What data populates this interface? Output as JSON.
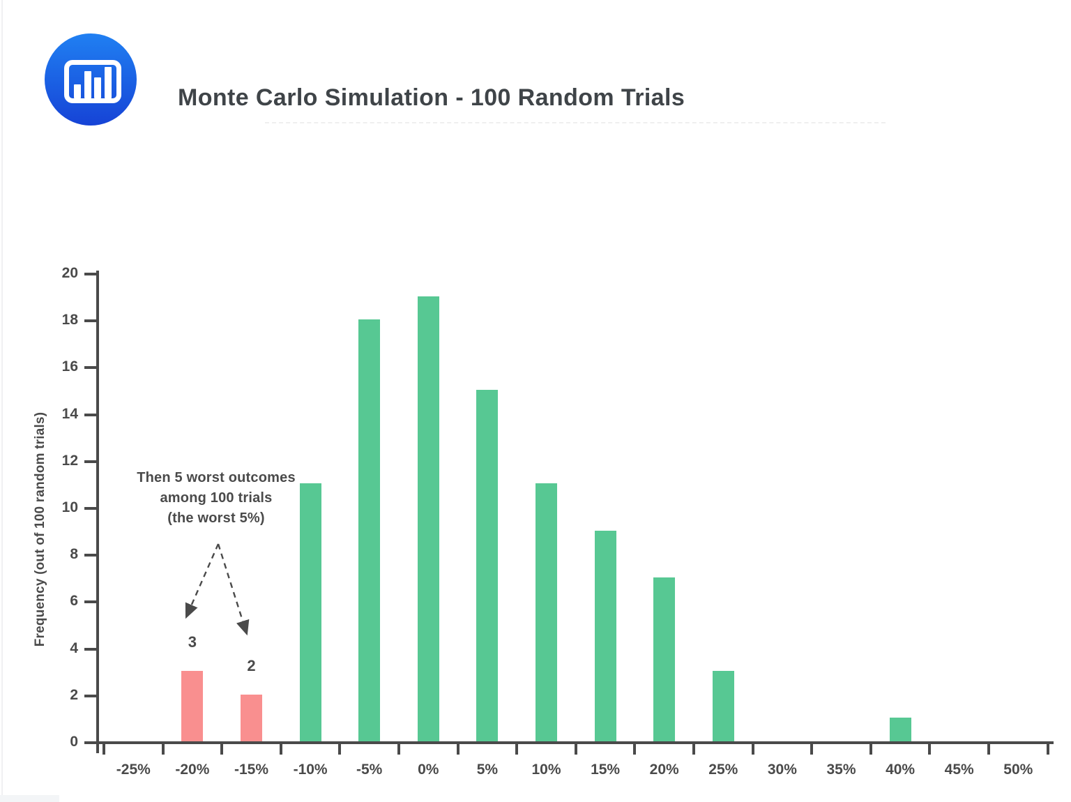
{
  "header": {
    "title": "Monte Carlo Simulation - 100 Random Trials",
    "logo": {
      "icon": "bar-chart-icon",
      "color_top": "#2080f2",
      "color_bottom": "#1643d6"
    }
  },
  "chart_data": {
    "type": "bar",
    "title": "Monte Carlo Simulation - 100 Random Trials",
    "xlabel": "",
    "ylabel": "Frequency (out of 100 random trials)",
    "categories": [
      "-25%",
      "-20%",
      "-15%",
      "-10%",
      "-5%",
      "0%",
      "5%",
      "10%",
      "15%",
      "20%",
      "25%",
      "30%",
      "35%",
      "40%",
      "45%",
      "50%"
    ],
    "values": [
      0,
      3,
      2,
      11,
      18,
      19,
      15,
      11,
      9,
      7,
      3,
      0,
      0,
      1,
      0,
      0
    ],
    "highlighted_categories": [
      "-20%",
      "-15%"
    ],
    "value_labels": [
      {
        "category": "-20%",
        "text": "3"
      },
      {
        "category": "-15%",
        "text": "2"
      }
    ],
    "yticks": [
      0,
      2,
      4,
      6,
      8,
      10,
      12,
      14,
      16,
      18,
      20
    ],
    "ylim": [
      0,
      20
    ],
    "grid": false,
    "legend": null,
    "colors": {
      "bar": "#57c893",
      "highlight": "#f98f8f",
      "axis": "#4a4a4a",
      "text": "#4a4a4a"
    },
    "annotation": {
      "lines": [
        "Then 5 worst outcomes",
        "among 100 trials",
        "(the worst 5%)"
      ],
      "targets": [
        "-20%",
        "-15%"
      ]
    }
  }
}
